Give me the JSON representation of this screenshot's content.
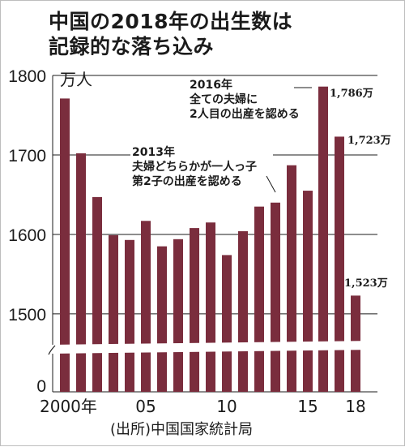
{
  "title_lines": [
    "中国の2018年の出生数は",
    "記録的な落ち込み"
  ],
  "source": "(出所)中国国家統計局",
  "colors": {
    "bar": "#7a2d3d",
    "text": "#1b1b1b",
    "grid": "#1b1b1b",
    "break_band": "#ffffff"
  },
  "chart_data": {
    "type": "bar",
    "unit": "万人",
    "categories": [
      "2000",
      "2001",
      "2002",
      "2003",
      "2004",
      "2005",
      "2006",
      "2007",
      "2008",
      "2009",
      "2010",
      "2011",
      "2012",
      "2013",
      "2014",
      "2015",
      "2016",
      "2017",
      "2018"
    ],
    "x_tick_labels": [
      {
        "category": "2000",
        "label": "2000年"
      },
      {
        "category": "2005",
        "label": "05"
      },
      {
        "category": "2010",
        "label": "10"
      },
      {
        "category": "2015",
        "label": "15"
      },
      {
        "category": "2018",
        "label": "18"
      }
    ],
    "values": [
      1771,
      1702,
      1647,
      1599,
      1593,
      1617,
      1585,
      1594,
      1608,
      1615,
      1574,
      1604,
      1635,
      1640,
      1687,
      1655,
      1786,
      1723,
      1523
    ],
    "ylim": [
      1455,
      1800
    ],
    "y_ticks": [
      1800,
      1700,
      1600,
      1500
    ],
    "y_break_label": "0",
    "axis_break": true,
    "grid": true,
    "data_labels": [
      {
        "category": "2016",
        "text": "1,786万"
      },
      {
        "category": "2017",
        "text": "1,723万"
      },
      {
        "category": "2018",
        "text": "1,523万"
      }
    ],
    "annotations": [
      {
        "category": "2016",
        "lines": [
          "2016年",
          "全ての夫婦に",
          "2人目の出産を認める"
        ]
      },
      {
        "category": "2013",
        "lines": [
          "2013年",
          "夫婦どちらかが一人っ子",
          "第2子の出産を認める"
        ]
      }
    ]
  }
}
